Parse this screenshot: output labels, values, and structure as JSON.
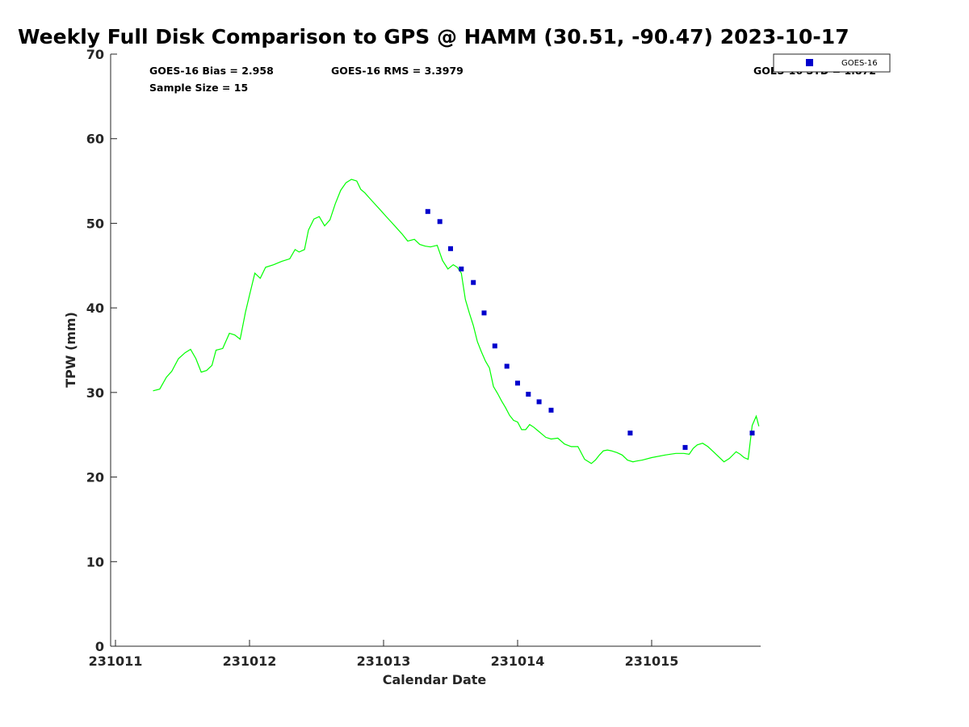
{
  "chart_data": {
    "type": "line",
    "title": "Weekly Full Disk Comparison to GPS @ HAMM (30.51, -90.47) 2023-10-17",
    "xlabel": "Calendar Date",
    "ylabel": "TPW (mm)",
    "xlim": [
      231011,
      231015.8
    ],
    "ylim": [
      0,
      70
    ],
    "x_ticks": [
      231011,
      231012,
      231013,
      231014,
      231015
    ],
    "y_ticks": [
      0,
      10,
      20,
      30,
      40,
      50,
      60,
      70
    ],
    "grid": false,
    "legend": {
      "position": "top-right",
      "entries": [
        "GOES-16"
      ]
    },
    "stats": {
      "bias": "GOES-16 Bias = 2.958",
      "rms": "GOES-16 RMS = 3.3979",
      "sample_size": "Sample Size = 15",
      "std": "GOES-16 STD = 1.872"
    },
    "colors": {
      "gps": "#00ff00",
      "goes16": "#0000cc",
      "axis": "#262626"
    },
    "series": [
      {
        "kind": "line",
        "x": [
          231011.28,
          231011.33,
          231011.38,
          231011.42,
          231011.47,
          231011.52,
          231011.56,
          231011.6,
          231011.64,
          231011.68,
          231011.72,
          231011.75,
          231011.8,
          231011.85,
          231011.89,
          231011.93,
          231011.97,
          231012.0,
          231012.04,
          231012.08,
          231012.12,
          231012.18,
          231012.24,
          231012.3,
          231012.34,
          231012.37,
          231012.41,
          231012.44,
          231012.48,
          231012.52,
          231012.56,
          231012.6,
          231012.64,
          231012.68,
          231012.72,
          231012.76,
          231012.8,
          231012.83,
          231012.86,
          231012.9,
          231012.94,
          231012.98,
          231013.02,
          231013.06,
          231013.1,
          231013.14,
          231013.18,
          231013.23,
          231013.27,
          231013.31,
          231013.35,
          231013.4,
          231013.44,
          231013.48,
          231013.52,
          231013.55,
          231013.58,
          231013.61,
          231013.64,
          231013.67,
          231013.7,
          231013.73,
          231013.76,
          231013.79,
          231013.82,
          231013.85,
          231013.88,
          231013.91,
          231013.94,
          231013.97,
          231014.0,
          231014.03,
          231014.06,
          231014.09,
          231014.12,
          231014.15,
          231014.18,
          231014.21,
          231014.25,
          231014.3,
          231014.35,
          231014.4,
          231014.45,
          231014.5,
          231014.55,
          231014.58,
          231014.61,
          231014.64,
          231014.67,
          231014.7,
          231014.74,
          231014.78,
          231014.82,
          231014.86,
          231014.89,
          231014.93,
          231015.0,
          231015.1,
          231015.18,
          231015.24,
          231015.28,
          231015.31,
          231015.34,
          231015.38,
          231015.42,
          231015.46,
          231015.5,
          231015.54,
          231015.58,
          231015.63,
          231015.66,
          231015.69,
          231015.72,
          231015.75,
          231015.78,
          231015.8
        ],
        "y": [
          30.2,
          30.4,
          31.8,
          32.5,
          34.0,
          34.7,
          35.1,
          34.0,
          32.4,
          32.6,
          33.2,
          35.0,
          35.2,
          37.0,
          36.8,
          36.3,
          39.5,
          41.5,
          44.1,
          43.5,
          44.8,
          45.1,
          45.5,
          45.8,
          46.9,
          46.6,
          46.9,
          49.2,
          50.5,
          50.8,
          49.7,
          50.4,
          52.3,
          53.9,
          54.8,
          55.2,
          55.0,
          54.0,
          53.6,
          52.9,
          52.2,
          51.5,
          50.8,
          50.1,
          49.4,
          48.7,
          47.9,
          48.1,
          47.5,
          47.3,
          47.2,
          47.4,
          45.6,
          44.6,
          45.1,
          44.8,
          44.1,
          41.0,
          39.4,
          37.9,
          36.0,
          34.8,
          33.7,
          32.9,
          30.7,
          29.9,
          29.0,
          28.2,
          27.3,
          26.7,
          26.5,
          25.6,
          25.6,
          26.2,
          25.9,
          25.5,
          25.1,
          24.7,
          24.5,
          24.6,
          23.9,
          23.6,
          23.6,
          22.1,
          21.6,
          22.0,
          22.6,
          23.1,
          23.2,
          23.1,
          22.9,
          22.6,
          22.0,
          21.8,
          21.9,
          22.0,
          22.3,
          22.6,
          22.8,
          22.8,
          22.7,
          23.4,
          23.8,
          24.0,
          23.6,
          23.0,
          22.4,
          21.8,
          22.2,
          23.0,
          22.7,
          22.3,
          22.1,
          26.1,
          27.2,
          26.0
        ]
      },
      {
        "name": "GOES-16",
        "kind": "scatter",
        "x": [
          231013.33,
          231013.42,
          231013.5,
          231013.58,
          231013.67,
          231013.75,
          231013.83,
          231013.92,
          231014.0,
          231014.08,
          231014.16,
          231014.25,
          231014.84,
          231015.25,
          231015.75
        ],
        "y": [
          51.4,
          50.2,
          47.0,
          44.6,
          43.0,
          39.4,
          35.5,
          33.1,
          31.1,
          29.8,
          28.9,
          27.9,
          25.2,
          23.5,
          25.2
        ]
      }
    ]
  }
}
